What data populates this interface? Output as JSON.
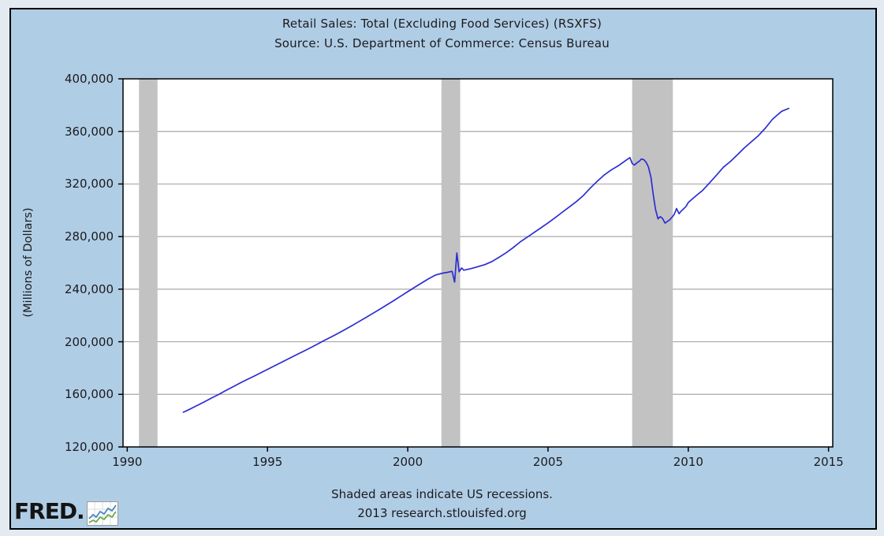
{
  "page": {
    "colors": {
      "margin": "#e4eaf1",
      "background": "#b0cde6",
      "border": "#000000"
    }
  },
  "logo": {
    "text": "FRED.",
    "icon": "line-chart-sparkline"
  },
  "chart_data": {
    "type": "line",
    "title": "Retail Sales: Total (Excluding Food Services) (RSXFS)",
    "subtitle": "Source: U.S. Department of Commerce: Census Bureau",
    "ylabel": "(Millions of Dollars)",
    "xlabel": "",
    "footnote1": "Shaded areas indicate US recessions.",
    "footnote2": "2013 research.stlouisfed.org",
    "xlim": [
      1989.85,
      2015.15
    ],
    "ylim": [
      120000,
      400000
    ],
    "x_ticks": [
      1990,
      1995,
      2000,
      2005,
      2010,
      2015
    ],
    "x_tick_labels": [
      "1990",
      "1995",
      "2000",
      "2005",
      "2010",
      "2015"
    ],
    "y_ticks": [
      120000,
      160000,
      200000,
      240000,
      280000,
      320000,
      360000,
      400000
    ],
    "y_tick_labels": [
      "120,000",
      "160,000",
      "200,000",
      "240,000",
      "280,000",
      "320,000",
      "360,000",
      "400,000"
    ],
    "grid": "horizontal-only",
    "legend": "none",
    "recessions": [
      [
        1990.42,
        1991.08
      ],
      [
        2001.2,
        2001.87
      ],
      [
        2008.0,
        2009.45
      ]
    ],
    "colors": {
      "plot_background": "#ffffff",
      "grid": "#a8a8a8",
      "recession": "#c2c2c2",
      "frame": "#000000"
    },
    "series": [
      {
        "name": "RSXFS",
        "color": "#2d2dd2",
        "points": [
          [
            1992.0,
            146400
          ],
          [
            1992.25,
            148900
          ],
          [
            1992.5,
            151600
          ],
          [
            1992.75,
            154300
          ],
          [
            1993.0,
            157200
          ],
          [
            1993.25,
            159800
          ],
          [
            1993.5,
            162700
          ],
          [
            1993.75,
            165500
          ],
          [
            1994.0,
            168300
          ],
          [
            1994.25,
            171000
          ],
          [
            1994.5,
            173600
          ],
          [
            1994.75,
            176300
          ],
          [
            1995.0,
            179000
          ],
          [
            1995.25,
            181700
          ],
          [
            1995.5,
            184400
          ],
          [
            1995.75,
            187100
          ],
          [
            1996.0,
            189800
          ],
          [
            1996.25,
            192400
          ],
          [
            1996.5,
            195100
          ],
          [
            1996.75,
            197900
          ],
          [
            1997.0,
            200700
          ],
          [
            1997.25,
            203400
          ],
          [
            1997.5,
            206200
          ],
          [
            1997.75,
            209100
          ],
          [
            1998.0,
            212100
          ],
          [
            1998.25,
            215200
          ],
          [
            1998.5,
            218300
          ],
          [
            1998.75,
            221500
          ],
          [
            1999.0,
            224700
          ],
          [
            1999.25,
            228000
          ],
          [
            1999.5,
            231300
          ],
          [
            1999.75,
            234700
          ],
          [
            2000.0,
            238100
          ],
          [
            2000.25,
            241500
          ],
          [
            2000.5,
            244800
          ],
          [
            2000.75,
            248000
          ],
          [
            2001.0,
            250800
          ],
          [
            2001.25,
            252200
          ],
          [
            2001.42,
            252800
          ],
          [
            2001.58,
            253600
          ],
          [
            2001.67,
            245400
          ],
          [
            2001.75,
            267500
          ],
          [
            2001.83,
            253200
          ],
          [
            2001.92,
            256100
          ],
          [
            2002.0,
            254400
          ],
          [
            2002.25,
            255600
          ],
          [
            2002.5,
            257100
          ],
          [
            2002.75,
            258700
          ],
          [
            2003.0,
            261000
          ],
          [
            2003.25,
            264200
          ],
          [
            2003.5,
            267600
          ],
          [
            2003.75,
            271500
          ],
          [
            2004.0,
            275800
          ],
          [
            2004.25,
            279400
          ],
          [
            2004.5,
            283000
          ],
          [
            2004.75,
            286700
          ],
          [
            2005.0,
            290400
          ],
          [
            2005.25,
            294300
          ],
          [
            2005.5,
            298400
          ],
          [
            2005.75,
            302400
          ],
          [
            2006.0,
            306400
          ],
          [
            2006.25,
            311000
          ],
          [
            2006.5,
            316800
          ],
          [
            2006.75,
            322000
          ],
          [
            2007.0,
            326800
          ],
          [
            2007.25,
            330600
          ],
          [
            2007.5,
            333800
          ],
          [
            2007.75,
            337600
          ],
          [
            2007.92,
            340100
          ],
          [
            2008.0,
            335600
          ],
          [
            2008.08,
            334400
          ],
          [
            2008.17,
            336100
          ],
          [
            2008.25,
            337200
          ],
          [
            2008.33,
            339000
          ],
          [
            2008.42,
            338400
          ],
          [
            2008.5,
            336500
          ],
          [
            2008.58,
            332900
          ],
          [
            2008.67,
            325000
          ],
          [
            2008.75,
            312300
          ],
          [
            2008.83,
            300900
          ],
          [
            2008.92,
            293500
          ],
          [
            2009.0,
            295200
          ],
          [
            2009.08,
            293900
          ],
          [
            2009.17,
            290300
          ],
          [
            2009.25,
            291400
          ],
          [
            2009.33,
            292600
          ],
          [
            2009.42,
            294700
          ],
          [
            2009.5,
            296900
          ],
          [
            2009.58,
            301400
          ],
          [
            2009.67,
            297400
          ],
          [
            2009.75,
            299500
          ],
          [
            2009.83,
            301100
          ],
          [
            2009.92,
            303000
          ],
          [
            2010.0,
            305900
          ],
          [
            2010.25,
            310600
          ],
          [
            2010.5,
            314900
          ],
          [
            2010.75,
            320700
          ],
          [
            2011.0,
            326600
          ],
          [
            2011.25,
            332700
          ],
          [
            2011.5,
            337100
          ],
          [
            2011.75,
            342200
          ],
          [
            2012.0,
            347500
          ],
          [
            2012.25,
            352100
          ],
          [
            2012.5,
            356800
          ],
          [
            2012.75,
            362500
          ],
          [
            2013.0,
            369200
          ],
          [
            2013.17,
            372400
          ],
          [
            2013.33,
            375300
          ],
          [
            2013.58,
            377500
          ]
        ]
      }
    ]
  }
}
